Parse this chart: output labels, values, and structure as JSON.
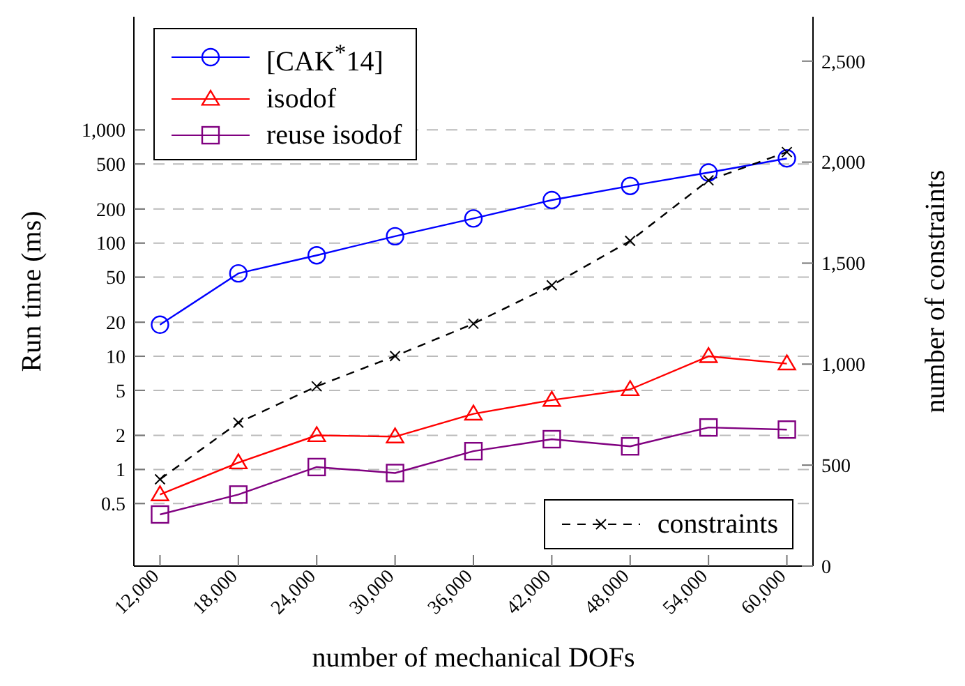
{
  "chart_data": {
    "type": "line",
    "xlabel": "number of mechanical DOFs",
    "ylabel": "Run time (ms)",
    "y2label": "number of constraints",
    "x": [
      12000,
      18000,
      24000,
      30000,
      36000,
      42000,
      48000,
      54000,
      60000
    ],
    "xlim": [
      10000,
      62000
    ],
    "xticks": [
      {
        "value": 12000,
        "label": "12,000"
      },
      {
        "value": 18000,
        "label": "18,000"
      },
      {
        "value": 24000,
        "label": "24,000"
      },
      {
        "value": 30000,
        "label": "30,000"
      },
      {
        "value": 36000,
        "label": "36,000"
      },
      {
        "value": 42000,
        "label": "42,000"
      },
      {
        "value": 48000,
        "label": "48,000"
      },
      {
        "value": 54000,
        "label": "54,000"
      },
      {
        "value": 60000,
        "label": "60,000"
      }
    ],
    "log": "y",
    "ylim": [
      0.14,
      10000
    ],
    "yticks": [
      0.5,
      1,
      2,
      5,
      10,
      20,
      50,
      100,
      200,
      500,
      {
        "value": 1000,
        "label": "1,000"
      }
    ],
    "y2lim": [
      0,
      2720
    ],
    "y2ticks": [
      0,
      500,
      {
        "value": 1000,
        "label": "1,000"
      },
      {
        "value": 1500,
        "label": "1,500"
      },
      {
        "value": 2000,
        "label": "2,000"
      },
      {
        "value": 2500,
        "label": "2,500"
      }
    ],
    "grid": "y",
    "legend": "top left",
    "series": [
      {
        "name": "[CAK$^{*}$14]",
        "color": "#0000ff",
        "marker": "circle",
        "line_style": "solid",
        "values": [
          19,
          54,
          78,
          115,
          165,
          240,
          320,
          420,
          560
        ]
      },
      {
        "name": "isodof",
        "color": "#ff0000",
        "marker": "triangle",
        "line_style": "solid",
        "values": [
          0.6,
          1.15,
          2.0,
          1.95,
          3.1,
          4.1,
          5.1,
          10,
          8.6
        ]
      },
      {
        "name": "reuse isodof",
        "color": "#800080",
        "marker": "square",
        "line_style": "solid",
        "values": [
          0.4,
          0.6,
          1.05,
          0.93,
          1.45,
          1.85,
          1.6,
          2.35,
          2.25
        ]
      },
      {
        "name": "constraints",
        "color": "#000000",
        "marker": "cross",
        "line_style": "dashed",
        "axis": "y2",
        "values": [
          430,
          710,
          890,
          1040,
          1200,
          1390,
          1610,
          1910,
          2050
        ]
      }
    ]
  }
}
